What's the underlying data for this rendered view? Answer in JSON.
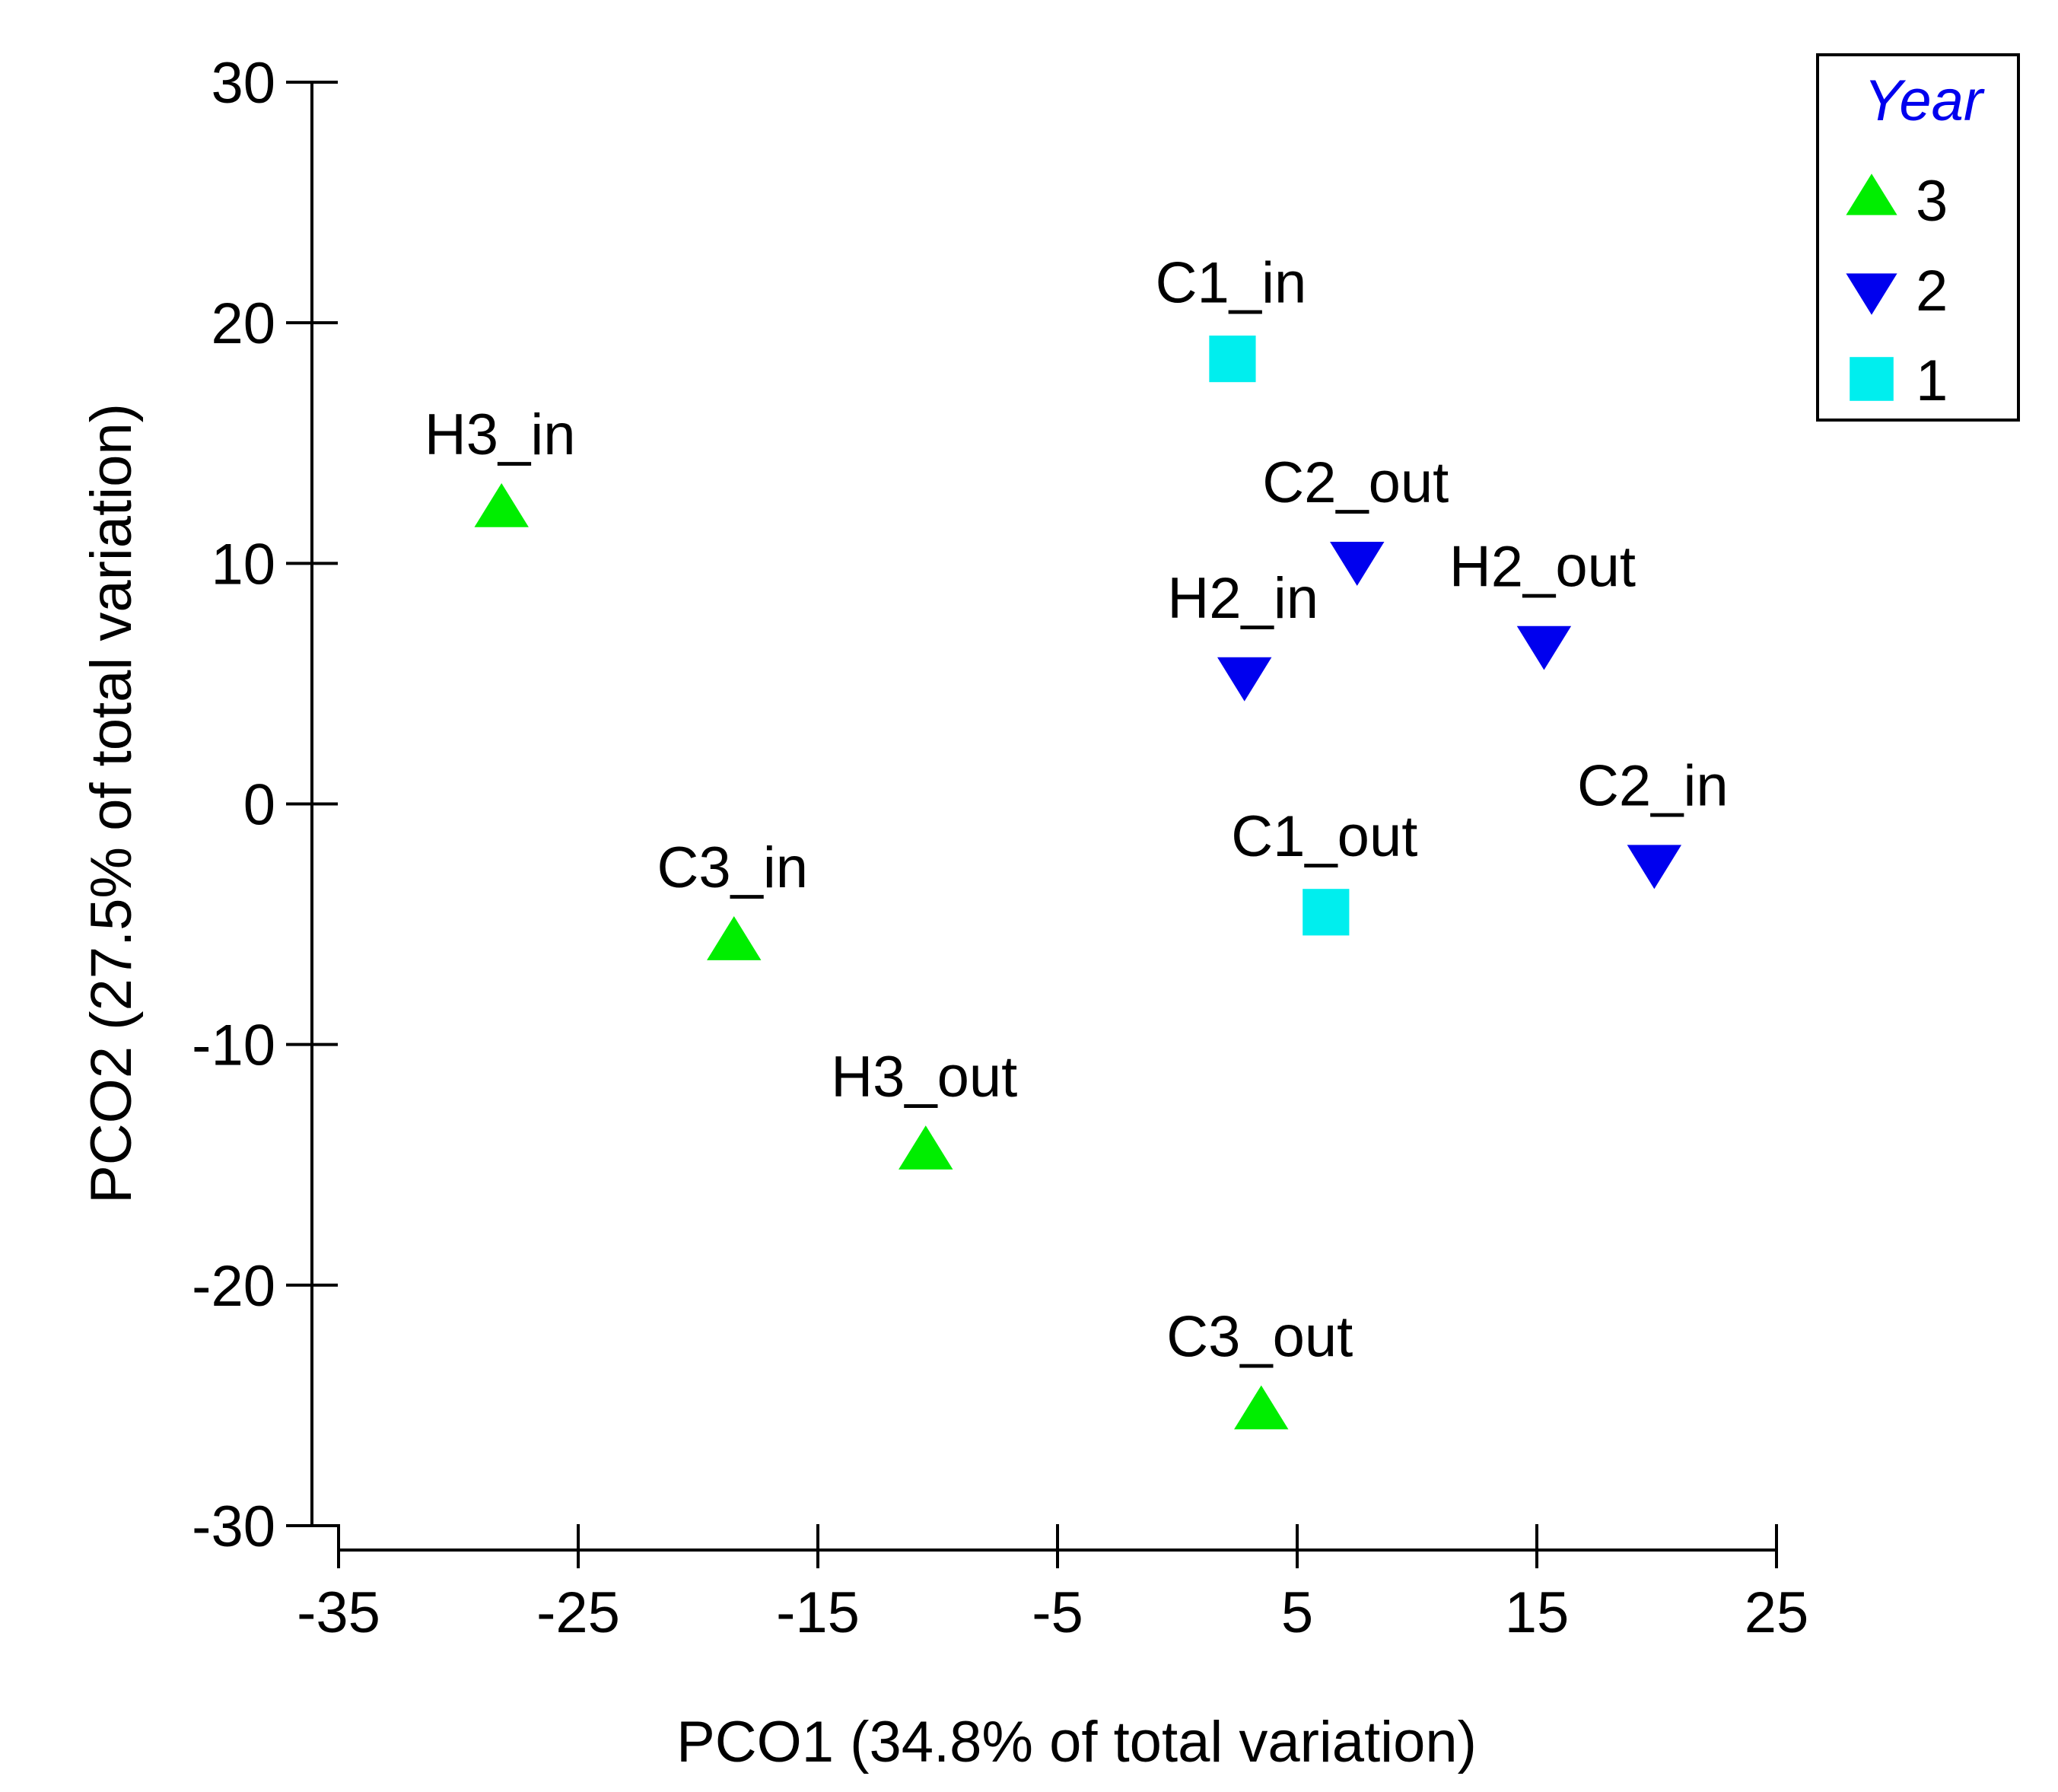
{
  "chart_data": {
    "type": "scatter",
    "xlabel": "PCO1 (34.8% of total variation)",
    "ylabel": "PCO2 (27.5% of total variation)",
    "xlim": [
      -35,
      25
    ],
    "ylim": [
      -30,
      30
    ],
    "xticks": [
      -35,
      -25,
      -15,
      -5,
      5,
      15,
      25
    ],
    "yticks": [
      30,
      20,
      10,
      0,
      -10,
      -20,
      -30
    ],
    "grid": false,
    "legend": {
      "title": "Year",
      "placement": "top-right",
      "entries": [
        {
          "label": "3",
          "marker": "triangle-up",
          "color": "#00ee00"
        },
        {
          "label": "2",
          "marker": "triangle-down",
          "color": "#0000ee"
        },
        {
          "label": "1",
          "marker": "square",
          "color": "#00eeee"
        }
      ]
    },
    "series": [
      {
        "name": "3",
        "marker": "triangle-up",
        "color": "#00ee00",
        "points": [
          {
            "label": "H3_in",
            "x": -28.2,
            "y": 12.2
          },
          {
            "label": "C3_in",
            "x": -18.5,
            "y": -5.8
          },
          {
            "label": "H3_out",
            "x": -10.5,
            "y": -14.5
          },
          {
            "label": "C3_out",
            "x": 3.5,
            "y": -25.3
          }
        ]
      },
      {
        "name": "2",
        "marker": "triangle-down",
        "color": "#0000ee",
        "points": [
          {
            "label": "C2_out",
            "x": 7.5,
            "y": 10.2
          },
          {
            "label": "H2_in",
            "x": 2.8,
            "y": 5.4
          },
          {
            "label": "H2_out",
            "x": 15.3,
            "y": 6.7
          },
          {
            "label": "C2_in",
            "x": 19.9,
            "y": -2.4
          }
        ]
      },
      {
        "name": "1",
        "marker": "square",
        "color": "#00eeee",
        "points": [
          {
            "label": "C1_in",
            "x": 2.3,
            "y": 18.5
          },
          {
            "label": "C1_out",
            "x": 6.2,
            "y": -4.5
          }
        ]
      }
    ]
  }
}
